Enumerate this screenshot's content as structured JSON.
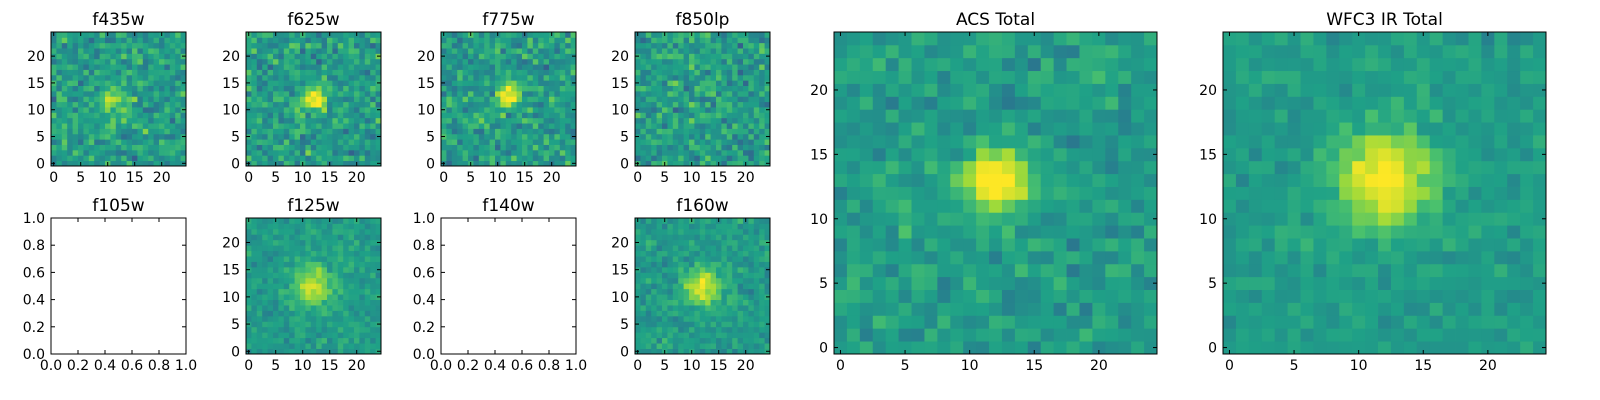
{
  "figure": {
    "colormap": "viridis",
    "colors": {
      "frame": "#000000",
      "viridis_stops": [
        "#440154",
        "#46327e",
        "#365c8d",
        "#277f8e",
        "#1fa187",
        "#4ac16d",
        "#a0da39",
        "#fde725"
      ]
    }
  },
  "chart_data": [
    {
      "type": "heatmap",
      "title": "f435w",
      "grid": [
        25,
        25
      ],
      "source_center": [
        11,
        12
      ],
      "source_sigma": 2.2,
      "source_amp": 0.25,
      "noise": 1.0,
      "seed": 11,
      "xticks": [
        "0",
        "5",
        "10",
        "15",
        "20"
      ],
      "yticks": [
        "0",
        "5",
        "10",
        "15",
        "20"
      ],
      "xlim": [
        -0.5,
        24.5
      ],
      "ylim": [
        -0.5,
        24.5
      ]
    },
    {
      "type": "heatmap",
      "title": "f625w",
      "grid": [
        25,
        25
      ],
      "source_center": [
        12,
        12
      ],
      "source_sigma": 1.6,
      "source_amp": 0.45,
      "noise": 1.0,
      "seed": 23,
      "xticks": [
        "0",
        "5",
        "10",
        "15",
        "20"
      ],
      "yticks": [
        "0",
        "5",
        "10",
        "15",
        "20"
      ],
      "xlim": [
        -0.5,
        24.5
      ],
      "ylim": [
        -0.5,
        24.5
      ]
    },
    {
      "type": "heatmap",
      "title": "f775w",
      "grid": [
        25,
        25
      ],
      "source_center": [
        12,
        13
      ],
      "source_sigma": 1.6,
      "source_amp": 0.45,
      "noise": 1.0,
      "seed": 37,
      "xticks": [
        "0",
        "5",
        "10",
        "15",
        "20"
      ],
      "yticks": [
        "0",
        "5",
        "10",
        "15",
        "20"
      ],
      "xlim": [
        -0.5,
        24.5
      ],
      "ylim": [
        -0.5,
        24.5
      ]
    },
    {
      "type": "heatmap",
      "title": "f850lp",
      "grid": [
        25,
        25
      ],
      "source_center": [
        12,
        12
      ],
      "source_sigma": 1.6,
      "source_amp": 0.05,
      "noise": 1.0,
      "seed": 41,
      "xticks": [
        "0",
        "5",
        "10",
        "15",
        "20"
      ],
      "yticks": [
        "0",
        "5",
        "10",
        "15",
        "20"
      ],
      "xlim": [
        -0.5,
        24.5
      ],
      "ylim": [
        -0.5,
        24.5
      ]
    },
    {
      "type": "heatmap",
      "title": "f105w",
      "empty": true,
      "xticks": [
        "0.0",
        "0.2",
        "0.4",
        "0.6",
        "0.8",
        "1.0"
      ],
      "yticks": [
        "0.0",
        "0.2",
        "0.4",
        "0.6",
        "0.8",
        "1.0"
      ],
      "xlim": [
        0,
        1
      ],
      "ylim": [
        0,
        1
      ]
    },
    {
      "type": "heatmap",
      "title": "f125w",
      "grid": [
        25,
        25
      ],
      "source_center": [
        12,
        12
      ],
      "source_sigma": 2.5,
      "source_amp": 0.4,
      "noise": 0.55,
      "seed": 53,
      "xticks": [
        "0",
        "5",
        "10",
        "15",
        "20"
      ],
      "yticks": [
        "0",
        "5",
        "10",
        "15",
        "20"
      ],
      "xlim": [
        -0.5,
        24.5
      ],
      "ylim": [
        -0.5,
        24.5
      ]
    },
    {
      "type": "heatmap",
      "title": "f140w",
      "empty": true,
      "xticks": [
        "0.0",
        "0.2",
        "0.4",
        "0.6",
        "0.8",
        "1.0"
      ],
      "yticks": [
        "0.0",
        "0.2",
        "0.4",
        "0.6",
        "0.8",
        "1.0"
      ],
      "xlim": [
        0,
        1
      ],
      "ylim": [
        0,
        1
      ]
    },
    {
      "type": "heatmap",
      "title": "f160w",
      "grid": [
        25,
        25
      ],
      "source_center": [
        12,
        12
      ],
      "source_sigma": 2.3,
      "source_amp": 0.45,
      "noise": 0.6,
      "seed": 67,
      "xticks": [
        "0",
        "5",
        "10",
        "15",
        "20"
      ],
      "yticks": [
        "0",
        "5",
        "10",
        "15",
        "20"
      ],
      "xlim": [
        -0.5,
        24.5
      ],
      "ylim": [
        -0.5,
        24.5
      ]
    },
    {
      "type": "heatmap",
      "title": "ACS Total",
      "grid": [
        25,
        25
      ],
      "source_center": [
        12,
        13
      ],
      "source_sigma": 1.8,
      "source_amp": 0.5,
      "noise": 0.65,
      "seed": 71,
      "xticks": [
        "0",
        "5",
        "10",
        "15",
        "20"
      ],
      "yticks": [
        "0",
        "5",
        "10",
        "15",
        "20"
      ],
      "xlim": [
        -0.5,
        24.5
      ],
      "ylim": [
        -0.5,
        24.5
      ]
    },
    {
      "type": "heatmap",
      "title": "WFC3 IR Total",
      "grid": [
        25,
        25
      ],
      "source_center": [
        12,
        13
      ],
      "source_sigma": 2.6,
      "source_amp": 0.5,
      "noise": 0.45,
      "seed": 89,
      "xticks": [
        "0",
        "5",
        "10",
        "15",
        "20"
      ],
      "yticks": [
        "0",
        "5",
        "10",
        "15",
        "20"
      ],
      "xlim": [
        -0.5,
        24.5
      ],
      "ylim": [
        -0.5,
        24.5
      ]
    }
  ]
}
